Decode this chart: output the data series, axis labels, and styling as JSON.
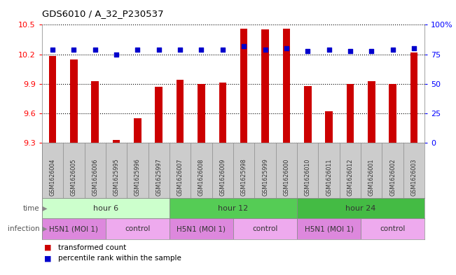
{
  "title": "GDS6010 / A_32_P230537",
  "samples": [
    "GSM1626004",
    "GSM1626005",
    "GSM1626006",
    "GSM1625995",
    "GSM1625996",
    "GSM1625997",
    "GSM1626007",
    "GSM1626008",
    "GSM1626009",
    "GSM1625998",
    "GSM1625999",
    "GSM1626000",
    "GSM1626010",
    "GSM1626011",
    "GSM1626012",
    "GSM1626001",
    "GSM1626002",
    "GSM1626003"
  ],
  "bar_values": [
    10.18,
    10.15,
    9.93,
    9.33,
    9.55,
    9.87,
    9.94,
    9.9,
    9.91,
    10.46,
    10.45,
    10.46,
    9.88,
    9.62,
    9.9,
    9.93,
    9.9,
    10.22
  ],
  "dot_values": [
    79,
    79,
    79,
    75,
    79,
    79,
    79,
    79,
    79,
    82,
    79,
    80,
    78,
    79,
    78,
    78,
    79,
    80
  ],
  "ylim_left": [
    9.3,
    10.5
  ],
  "ylim_right": [
    0,
    100
  ],
  "yticks_left": [
    9.3,
    9.6,
    9.9,
    10.2,
    10.5
  ],
  "yticks_right": [
    0,
    25,
    50,
    75,
    100
  ],
  "bar_color": "#cc0000",
  "dot_color": "#0000cc",
  "bar_bottom": 9.3,
  "time_groups": [
    {
      "label": "hour 6",
      "start": 0,
      "end": 6,
      "color": "#ccffcc"
    },
    {
      "label": "hour 12",
      "start": 6,
      "end": 12,
      "color": "#55cc55"
    },
    {
      "label": "hour 24",
      "start": 12,
      "end": 18,
      "color": "#44bb44"
    }
  ],
  "infection_groups": [
    {
      "label": "H5N1 (MOI 1)",
      "start": 0,
      "end": 3,
      "color": "#dd88dd"
    },
    {
      "label": "control",
      "start": 3,
      "end": 6,
      "color": "#eeaaee"
    },
    {
      "label": "H5N1 (MOI 1)",
      "start": 6,
      "end": 9,
      "color": "#dd88dd"
    },
    {
      "label": "control",
      "start": 9,
      "end": 12,
      "color": "#eeaaee"
    },
    {
      "label": "H5N1 (MOI 1)",
      "start": 12,
      "end": 15,
      "color": "#dd88dd"
    },
    {
      "label": "control",
      "start": 15,
      "end": 18,
      "color": "#eeaaee"
    }
  ],
  "legend_bar_label": "transformed count",
  "legend_dot_label": "percentile rank within the sample",
  "bg_color": "#ffffff",
  "grid_color": "#000000",
  "sample_bg_color": "#cccccc",
  "sample_text_color": "#333333"
}
